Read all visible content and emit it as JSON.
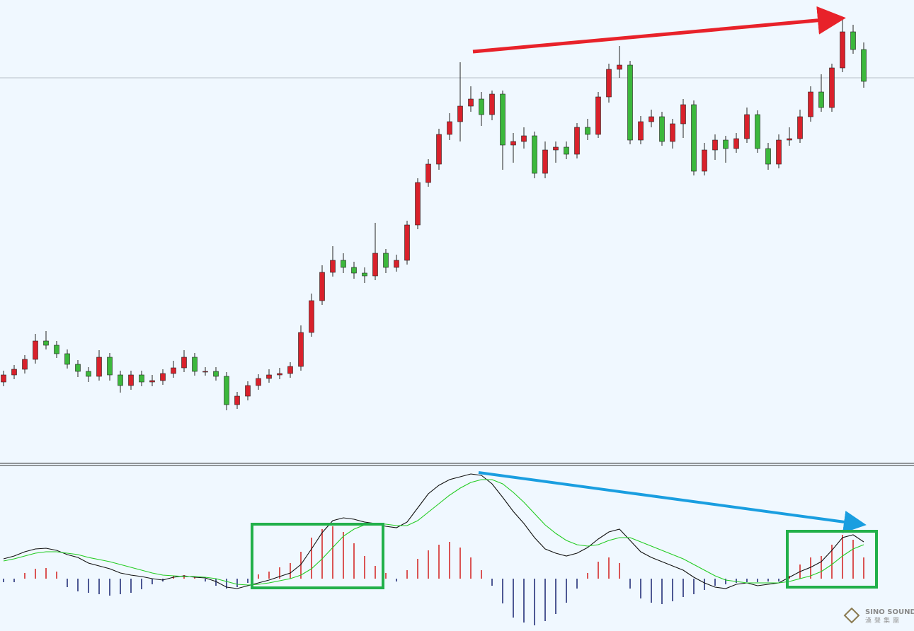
{
  "chart_data": [
    {
      "type": "candlestick",
      "up_color": "#d9212b",
      "down_color": "#3cb83c",
      "level": 540,
      "ylim": [
        0,
        650
      ],
      "open": [
        110,
        120,
        128,
        142,
        168,
        162,
        150,
        135,
        125,
        118,
        145,
        120,
        105,
        120,
        110,
        112,
        122,
        130,
        145,
        125,
        125,
        118,
        78,
        90,
        105,
        115,
        120,
        122,
        132,
        180,
        225,
        265,
        282,
        272,
        264,
        260,
        292,
        272,
        282,
        332,
        392,
        418,
        460,
        478,
        500,
        510,
        488,
        517,
        445,
        450,
        458,
        405,
        438,
        442,
        432,
        470,
        460,
        513,
        552,
        558,
        452,
        478,
        485,
        450,
        475,
        502,
        408,
        438,
        452,
        440,
        454,
        488,
        440,
        418,
        452,
        454,
        485,
        520,
        498,
        554,
        605,
        580
      ],
      "high": [
        126,
        134,
        148,
        178,
        182,
        168,
        156,
        141,
        131,
        155,
        151,
        126,
        126,
        126,
        120,
        128,
        140,
        155,
        151,
        131,
        131,
        124,
        96,
        111,
        121,
        128,
        130,
        138,
        190,
        235,
        275,
        302,
        292,
        280,
        272,
        335,
        298,
        290,
        338,
        398,
        425,
        468,
        490,
        562,
        528,
        520,
        522,
        522,
        462,
        470,
        464,
        450,
        450,
        450,
        476,
        482,
        520,
        560,
        585,
        564,
        486,
        495,
        492,
        482,
        510,
        508,
        448,
        460,
        458,
        462,
        498,
        494,
        448,
        460,
        470,
        495,
        528,
        545,
        560,
        625,
        615,
        590
      ],
      "low": [
        104,
        114,
        122,
        136,
        156,
        144,
        129,
        117,
        110,
        112,
        112,
        95,
        99,
        104,
        104,
        106,
        116,
        124,
        119,
        119,
        112,
        70,
        72,
        84,
        99,
        109,
        114,
        116,
        126,
        174,
        219,
        259,
        264,
        256,
        250,
        254,
        264,
        266,
        276,
        326,
        386,
        410,
        452,
        450,
        492,
        472,
        480,
        410,
        420,
        440,
        398,
        398,
        420,
        425,
        426,
        452,
        455,
        505,
        540,
        446,
        446,
        470,
        444,
        440,
        455,
        402,
        402,
        424,
        420,
        434,
        448,
        434,
        410,
        412,
        444,
        448,
        478,
        492,
        492,
        548,
        574,
        526
      ],
      "close": [
        120,
        128,
        142,
        168,
        162,
        150,
        135,
        125,
        118,
        145,
        120,
        105,
        120,
        110,
        112,
        122,
        130,
        145,
        125,
        125,
        118,
        78,
        90,
        105,
        115,
        120,
        122,
        132,
        180,
        225,
        265,
        282,
        272,
        264,
        260,
        292,
        272,
        282,
        332,
        392,
        418,
        460,
        478,
        500,
        510,
        488,
        517,
        445,
        450,
        458,
        405,
        438,
        442,
        432,
        470,
        460,
        513,
        552,
        558,
        452,
        478,
        485,
        450,
        475,
        502,
        408,
        438,
        452,
        440,
        454,
        488,
        440,
        418,
        452,
        454,
        485,
        520,
        498,
        554,
        605,
        580,
        535
      ]
    },
    {
      "type": "macd",
      "ylim": [
        -74,
        158
      ],
      "series": [
        {
          "name": null,
          "color": "#111111",
          "values": [
            28,
            32,
            38,
            42,
            43,
            40,
            34,
            30,
            22,
            18,
            14,
            8,
            5,
            3,
            0,
            -2,
            2,
            4,
            2,
            1,
            -4,
            -12,
            -14,
            -10,
            -6,
            -2,
            3,
            8,
            20,
            42,
            65,
            82,
            86,
            84,
            80,
            78,
            74,
            72,
            80,
            100,
            120,
            132,
            140,
            144,
            148,
            146,
            134,
            115,
            95,
            78,
            58,
            42,
            36,
            32,
            36,
            44,
            56,
            66,
            70,
            54,
            38,
            30,
            24,
            18,
            12,
            2,
            -6,
            -12,
            -14,
            -8,
            -6,
            -10,
            -8,
            -6,
            2,
            10,
            16,
            24,
            40,
            58,
            62,
            52
          ]
        },
        {
          "name": null,
          "color": "#22cc22",
          "values": [
            25,
            28,
            32,
            36,
            38,
            38,
            36,
            34,
            30,
            27,
            24,
            20,
            16,
            12,
            8,
            5,
            4,
            3,
            3,
            2,
            0,
            -4,
            -8,
            -9,
            -8,
            -6,
            -3,
            0,
            5,
            14,
            28,
            44,
            60,
            70,
            76,
            78,
            77,
            75,
            75,
            82,
            94,
            106,
            118,
            128,
            136,
            140,
            140,
            134,
            122,
            108,
            92,
            76,
            64,
            54,
            48,
            46,
            48,
            54,
            58,
            58,
            52,
            46,
            40,
            34,
            28,
            20,
            12,
            4,
            -2,
            -4,
            -6,
            -6,
            -6,
            -6,
            -4,
            0,
            4,
            10,
            20,
            32,
            42,
            48
          ]
        }
      ],
      "histogram": [
        -5,
        -5,
        8,
        14,
        15,
        10,
        -12,
        -18,
        -20,
        -22,
        -24,
        -22,
        -20,
        -15,
        -8,
        -4,
        4,
        5,
        3,
        -4,
        -10,
        -14,
        -12,
        -6,
        6,
        10,
        16,
        22,
        38,
        58,
        70,
        74,
        66,
        50,
        32,
        18,
        8,
        -4,
        12,
        28,
        40,
        48,
        52,
        44,
        30,
        12,
        -10,
        -35,
        -55,
        -62,
        -66,
        -60,
        -50,
        -34,
        -14,
        8,
        24,
        30,
        22,
        -14,
        -28,
        -34,
        -36,
        -32,
        -26,
        -22,
        -16,
        -10,
        -8,
        -6,
        -5,
        -5,
        -4,
        -4,
        4,
        20,
        30,
        32,
        48,
        62,
        55,
        30
      ],
      "pos_color": "#d42a2a",
      "neg_color": "#24307a"
    }
  ],
  "watermark": {
    "title": "SINO SOUND",
    "subtitle": "漢聲集團"
  }
}
